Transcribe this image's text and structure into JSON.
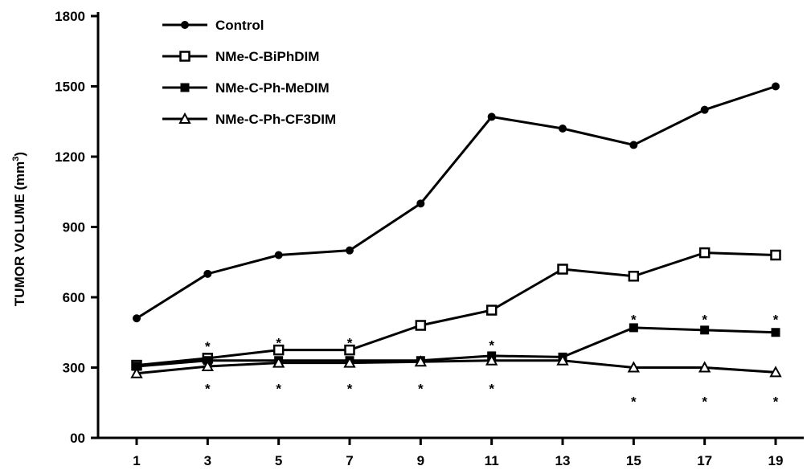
{
  "chart_data": {
    "type": "line",
    "ylabel": "TUMOR VOLUME (mm",
    "ylabel_sup": "3",
    "ylabel_close": ")",
    "xlabel": "",
    "ylim": [
      0,
      1800
    ],
    "yticks": [
      0,
      300,
      600,
      900,
      1200,
      1500,
      1800
    ],
    "ytick_labels": [
      "00",
      "300",
      "600",
      "900",
      "1200",
      "1500",
      "1800"
    ],
    "x": [
      1,
      3,
      5,
      7,
      9,
      11,
      13,
      15,
      17,
      19
    ],
    "xtick_labels": [
      "1",
      "3",
      "5",
      "7",
      "9",
      "11",
      "13",
      "15",
      "17",
      "19"
    ],
    "legend_position": "top-left",
    "series": [
      {
        "name": "Control",
        "marker": "circle",
        "values": [
          510,
          700,
          780,
          800,
          1000,
          1370,
          1320,
          1250,
          1400,
          1500
        ]
      },
      {
        "name": "NMe-C-BiPhDIM",
        "marker": "square-open",
        "values": [
          310,
          340,
          375,
          375,
          480,
          545,
          720,
          690,
          790,
          780
        ]
      },
      {
        "name": "NMe-C-Ph-MeDIM",
        "marker": "square-filled",
        "values": [
          305,
          330,
          330,
          330,
          330,
          350,
          345,
          470,
          460,
          450
        ]
      },
      {
        "name": "NMe-C-Ph-CF3DIM",
        "marker": "triangle",
        "values": [
          275,
          305,
          320,
          320,
          325,
          330,
          330,
          300,
          300,
          280
        ]
      }
    ],
    "annotations": [
      {
        "text": "*",
        "x": 3,
        "y": 405
      },
      {
        "text": "*",
        "x": 5,
        "y": 420
      },
      {
        "text": "*",
        "x": 7,
        "y": 420
      },
      {
        "text": "*",
        "x": 11,
        "y": 410
      },
      {
        "text": "*",
        "x": 15,
        "y": 520
      },
      {
        "text": "*",
        "x": 17,
        "y": 520
      },
      {
        "text": "*",
        "x": 19,
        "y": 520
      },
      {
        "text": "*",
        "x": 3,
        "y": 225
      },
      {
        "text": "*",
        "x": 5,
        "y": 225
      },
      {
        "text": "*",
        "x": 7,
        "y": 225
      },
      {
        "text": "*",
        "x": 9,
        "y": 225
      },
      {
        "text": "*",
        "x": 11,
        "y": 225
      },
      {
        "text": "*",
        "x": 15,
        "y": 170
      },
      {
        "text": "*",
        "x": 17,
        "y": 170
      },
      {
        "text": "*",
        "x": 19,
        "y": 170
      }
    ]
  }
}
